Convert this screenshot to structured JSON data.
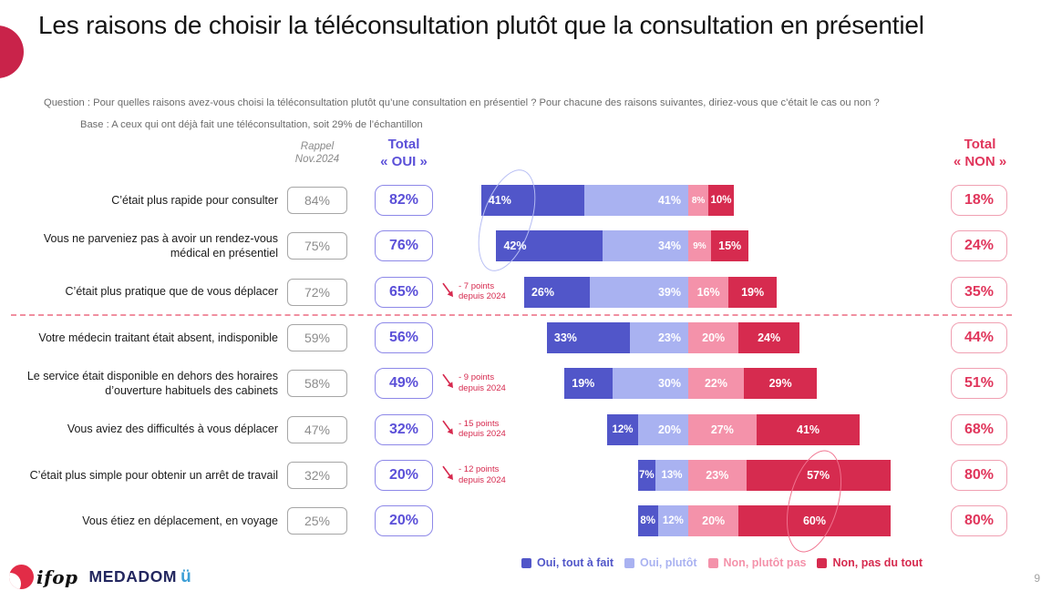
{
  "slide": {
    "title": "Les raisons de choisir la téléconsultation plutôt que la consultation en présentiel",
    "question": "Question : Pour quelles raisons avez-vous choisi la téléconsultation plutôt qu’une consultation en présentiel ? Pour chacune des raisons suivantes, diriez-vous que c’était le cas ou non ?",
    "base": "Base : A ceux qui ont déjà fait une téléconsultation, soit 29% de l’échantillon",
    "page_number": "9"
  },
  "columns": {
    "rappel": {
      "line1": "Rappel",
      "line2": "Nov.2024"
    },
    "total_oui": {
      "line1": "Total",
      "line2": "« OUI »"
    },
    "total_non": {
      "line1": "Total",
      "line2": "« NON »"
    }
  },
  "colors": {
    "oui_accent": "#5b50d8",
    "non_accent": "#e0355b",
    "accent_circle": "#c9234a",
    "separator": "#f08fa0",
    "annotation_red": "#d6294e"
  },
  "chart_data": {
    "type": "bar",
    "orientation": "horizontal",
    "stacked": true,
    "unit": "%",
    "alignment": "rows aligned on the OUI/NON boundary",
    "legend": [
      {
        "label": "Oui, tout à fait",
        "color": "#5156c9"
      },
      {
        "label": "Oui, plutôt",
        "color": "#a9b2f1"
      },
      {
        "label": "Non, plutôt pas",
        "color": "#f492aa"
      },
      {
        "label": "Non, pas du tout",
        "color": "#d62b4f"
      }
    ],
    "categories": [
      "Oui, tout à fait",
      "Oui, plutôt",
      "Non, plutôt pas",
      "Non, pas du tout"
    ],
    "rows": [
      {
        "label": "C’était plus rapide pour consulter",
        "rappel": "84%",
        "total_oui": "82%",
        "values": [
          41,
          41,
          8,
          10
        ],
        "total_non": "18%",
        "annotation": null
      },
      {
        "label": "Vous ne parveniez pas à avoir un rendez-vous médical en présentiel",
        "rappel": "75%",
        "total_oui": "76%",
        "values": [
          42,
          34,
          9,
          15
        ],
        "total_non": "24%",
        "annotation": null
      },
      {
        "label": "C’était plus pratique que de vous déplacer",
        "rappel": "72%",
        "total_oui": "65%",
        "values": [
          26,
          39,
          16,
          19
        ],
        "total_non": "35%",
        "annotation": [
          "- 7 points",
          "depuis 2024"
        ]
      },
      {
        "label": "Votre médecin traitant était absent, indisponible",
        "rappel": "59%",
        "total_oui": "56%",
        "values": [
          33,
          23,
          20,
          24
        ],
        "total_non": "44%",
        "annotation": null
      },
      {
        "label": "Le service était disponible en dehors des horaires d’ouverture habituels des cabinets",
        "rappel": "58%",
        "total_oui": "49%",
        "values": [
          19,
          30,
          22,
          29
        ],
        "total_non": "51%",
        "annotation": [
          "- 9 points",
          "depuis 2024"
        ]
      },
      {
        "label": "Vous aviez des difficultés à vous déplacer",
        "rappel": "47%",
        "total_oui": "32%",
        "values": [
          12,
          20,
          27,
          41
        ],
        "total_non": "68%",
        "annotation": [
          "- 15 points",
          "depuis 2024"
        ]
      },
      {
        "label": "C’était plus simple pour obtenir un arrêt de travail",
        "rappel": "32%",
        "total_oui": "20%",
        "values": [
          7,
          13,
          23,
          57
        ],
        "total_non": "80%",
        "annotation": [
          "- 12 points",
          "depuis 2024"
        ]
      },
      {
        "label": "Vous étiez en déplacement, en voyage",
        "rappel": "25%",
        "total_oui": "20%",
        "values": [
          8,
          12,
          20,
          60
        ],
        "total_non": "80%",
        "annotation": null
      }
    ],
    "separator_after_row_index": 2,
    "highlights": [
      "ellipse drawn around the 41% / 42% « Oui, tout à fait » values of rows 1-2",
      "ellipse drawn around the 57% / 60% « Non, pas du tout » values of rows 7-8"
    ]
  },
  "footer": {
    "ifop_text": "ifop",
    "medadom_text": "MEDADOM",
    "medadom_icon": "ü"
  }
}
